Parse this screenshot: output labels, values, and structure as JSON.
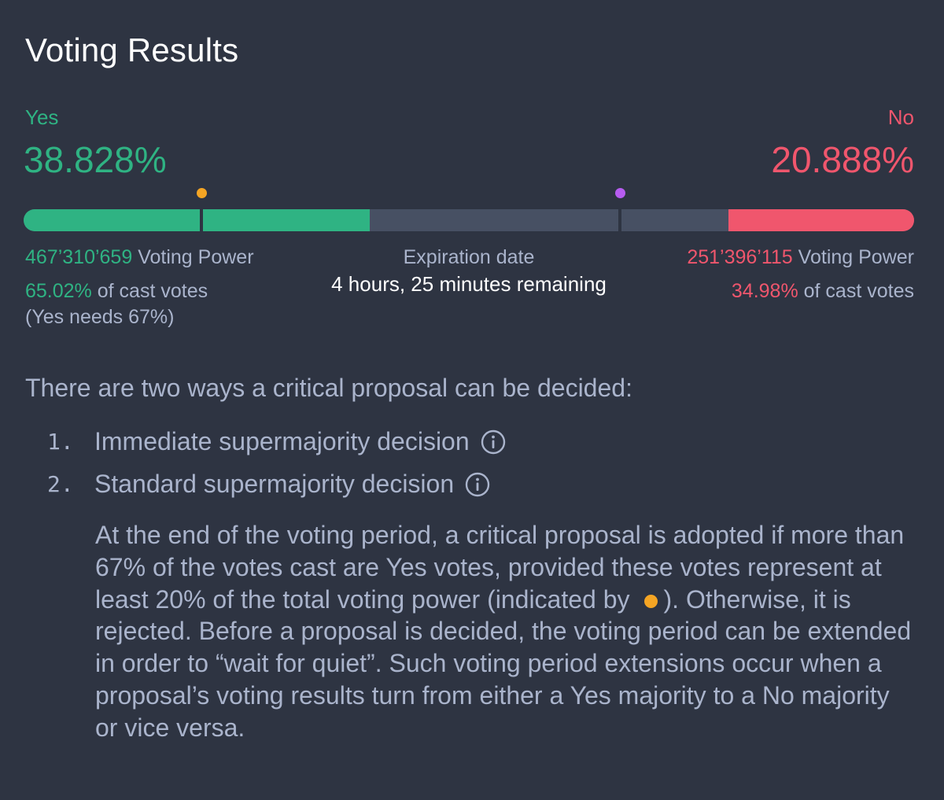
{
  "header": {
    "title": "Voting Results"
  },
  "yes": {
    "label": "Yes",
    "percent": "38.828%",
    "voting_power_value": "467’310’659",
    "voting_power_label": "Voting Power",
    "cast_pct": "65.02%",
    "cast_label": "of cast votes",
    "needs": "(Yes needs 67%)"
  },
  "no": {
    "label": "No",
    "percent": "20.888%",
    "voting_power_value": "251’396’115",
    "voting_power_label": "Voting Power",
    "cast_pct": "34.98%",
    "cast_label": "of cast votes"
  },
  "bar": {
    "yes_fraction": 0.38828,
    "no_fraction": 0.20888,
    "threshold_fraction": 0.2,
    "majority_marker_fraction": 0.67,
    "yes_color": "#2fb383",
    "no_color": "#f0566d",
    "threshold_dot_color": "#f5a524",
    "majority_dot_color": "#b65cf0"
  },
  "expiration": {
    "label": "Expiration date",
    "remaining": "4 hours, 25 minutes remaining"
  },
  "explanation": {
    "intro": "There are two ways a critical proposal can be decided:",
    "items": [
      {
        "number": "1.",
        "label": "Immediate supermajority decision",
        "icon": "info-icon"
      },
      {
        "number": "2.",
        "label": "Standard supermajority decision",
        "icon": "info-icon"
      }
    ],
    "body_part1": "At the end of the voting period, a critical proposal is adopted if more than 67% of the votes cast are Yes votes, provided these votes represent at least 20% of the total voting power (indicated by",
    "body_part2": "). Otherwise, it is rejected. Before a proposal is decided, the voting period can be extended in order to “wait for quiet”. Such voting period extensions occur when a proposal’s voting results turn from either a Yes majority to a No majority or vice versa."
  }
}
